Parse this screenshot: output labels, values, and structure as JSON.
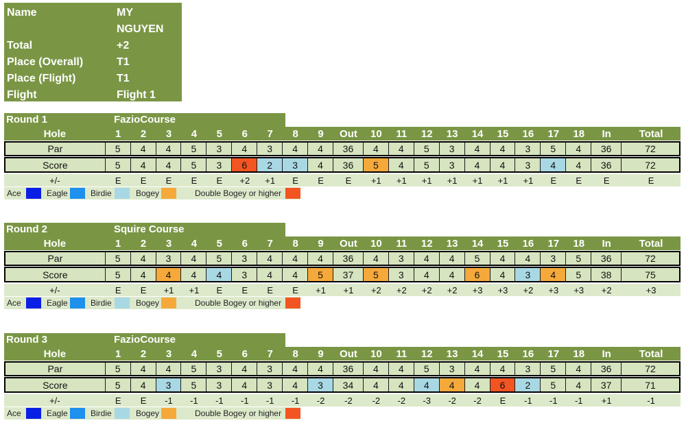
{
  "player": {
    "name_label": "Name",
    "name_line1": "MY",
    "name_line2": "NGUYEN",
    "total_label": "Total",
    "total_value": "+2",
    "overall_label": "Place (Overall)",
    "overall_value": "T1",
    "flight_place_label": "Place (Flight)",
    "flight_place_value": "T1",
    "flight_label": "Flight",
    "flight_value": "Flight 1"
  },
  "labels": {
    "hole": "Hole",
    "par": "Par",
    "score": "Score",
    "pm": "+/-"
  },
  "hole_headers": [
    "1",
    "2",
    "3",
    "4",
    "5",
    "6",
    "7",
    "8",
    "9",
    "Out",
    "10",
    "11",
    "12",
    "13",
    "14",
    "15",
    "16",
    "17",
    "18",
    "In",
    "Total"
  ],
  "legend": {
    "ace": "Ace",
    "eagle": "Eagle",
    "birdie": "Birdie",
    "bogey": "Bogey",
    "double": "Double Bogey or higher",
    "colors": {
      "ace": "#0a1fe6",
      "eagle": "#1e90ee",
      "birdie": "#a8d8e4",
      "bogey": "#f5a93a",
      "double": "#f25522"
    }
  },
  "rounds": [
    {
      "label": "Round 1",
      "course": "FazioCourse",
      "par": [
        "5",
        "4",
        "4",
        "5",
        "3",
        "4",
        "3",
        "4",
        "4",
        "36",
        "4",
        "4",
        "5",
        "3",
        "4",
        "4",
        "3",
        "5",
        "4",
        "36",
        "72"
      ],
      "score": [
        "5",
        "4",
        "4",
        "5",
        "3",
        "6",
        "2",
        "3",
        "4",
        "36",
        "5",
        "4",
        "5",
        "3",
        "4",
        "4",
        "3",
        "4",
        "4",
        "36",
        "72"
      ],
      "score_types": [
        "",
        "",
        "",
        "",
        "",
        "double",
        "birdie",
        "birdie",
        "",
        "",
        "bogey",
        "",
        "",
        "",
        "",
        "",
        "",
        "birdie",
        "",
        "",
        ""
      ],
      "pm": [
        "E",
        "E",
        "E",
        "E",
        "E",
        "+2",
        "+1",
        "E",
        "E",
        "E",
        "+1",
        "+1",
        "+1",
        "+1",
        "+1",
        "+1",
        "+1",
        "E",
        "E",
        "E",
        "E"
      ]
    },
    {
      "label": "Round 2",
      "course": "Squire Course",
      "par": [
        "5",
        "4",
        "3",
        "4",
        "5",
        "3",
        "4",
        "4",
        "4",
        "36",
        "4",
        "3",
        "4",
        "4",
        "5",
        "4",
        "4",
        "3",
        "5",
        "36",
        "72"
      ],
      "score": [
        "5",
        "4",
        "4",
        "4",
        "4",
        "3",
        "4",
        "4",
        "5",
        "37",
        "5",
        "3",
        "4",
        "4",
        "6",
        "4",
        "3",
        "4",
        "5",
        "38",
        "75"
      ],
      "score_types": [
        "",
        "",
        "bogey",
        "",
        "birdie",
        "",
        "",
        "",
        "bogey",
        "",
        "bogey",
        "",
        "",
        "",
        "bogey",
        "",
        "birdie",
        "bogey",
        "",
        "",
        ""
      ],
      "pm": [
        "E",
        "E",
        "+1",
        "+1",
        "E",
        "E",
        "E",
        "E",
        "+1",
        "+1",
        "+2",
        "+2",
        "+2",
        "+2",
        "+3",
        "+3",
        "+2",
        "+3",
        "+3",
        "+2",
        "+3"
      ]
    },
    {
      "label": "Round 3",
      "course": "FazioCourse",
      "par": [
        "5",
        "4",
        "4",
        "5",
        "3",
        "4",
        "3",
        "4",
        "4",
        "36",
        "4",
        "4",
        "5",
        "3",
        "4",
        "4",
        "3",
        "5",
        "4",
        "36",
        "72"
      ],
      "score": [
        "5",
        "4",
        "3",
        "5",
        "3",
        "4",
        "3",
        "4",
        "3",
        "34",
        "4",
        "4",
        "4",
        "4",
        "4",
        "6",
        "2",
        "5",
        "4",
        "37",
        "71"
      ],
      "score_types": [
        "",
        "",
        "birdie",
        "",
        "",
        "",
        "",
        "",
        "birdie",
        "",
        "",
        "",
        "birdie",
        "bogey",
        "",
        "double",
        "birdie",
        "",
        "",
        "",
        ""
      ],
      "pm": [
        "E",
        "E",
        "-1",
        "-1",
        "-1",
        "-1",
        "-1",
        "-1",
        "-2",
        "-2",
        "-2",
        "-2",
        "-3",
        "-2",
        "-2",
        "E",
        "-1",
        "-1",
        "-1",
        "+1",
        "-1"
      ]
    }
  ]
}
